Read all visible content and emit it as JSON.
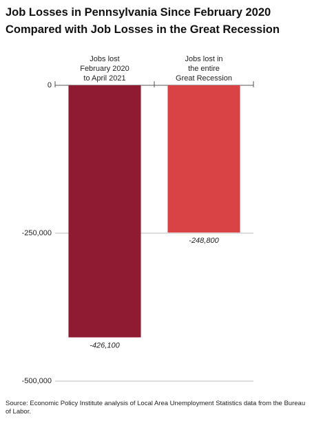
{
  "chart_data": {
    "type": "bar",
    "title": "Job Losses in Pennsylvania Since February 2020\nCompared with Job Losses in the Great Recession",
    "categories": [
      "Jobs lost\nFebruary 2020\nto April 2021",
      "Jobs lost in\nthe entire\nGreat Recession"
    ],
    "values": [
      -426100,
      -248800
    ],
    "value_labels": [
      "-426,100",
      "-248,800"
    ],
    "colors": [
      "#8e1b32",
      "#d94346"
    ],
    "ylim": [
      -500000,
      0
    ],
    "yticks": [
      0,
      {
        "value": -250000,
        "label": "-250,000"
      },
      {
        "value": -500000,
        "label": "-500,000"
      }
    ],
    "grid": true,
    "source": "Source: Economic Policy Institute analysis of Local Area Unemployment Statistics data from the Bureau of Labor."
  }
}
